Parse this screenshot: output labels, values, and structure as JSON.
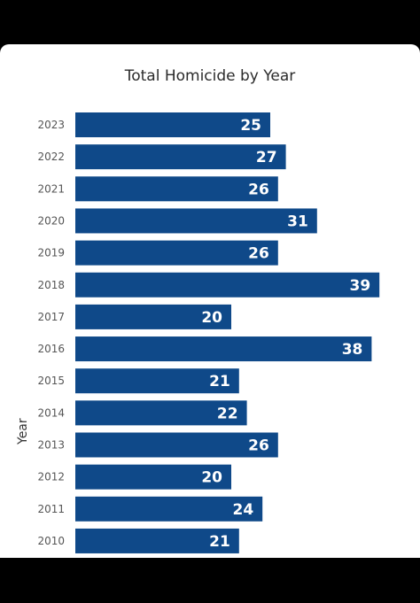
{
  "colors": {
    "bar": "#0f4989",
    "bar_label": "#ffffff",
    "tick_label": "#555555",
    "title": "#2b2b2b",
    "background": "#ffffff",
    "frame": "#000000"
  },
  "chart_data": {
    "type": "bar",
    "orientation": "horizontal",
    "title": "Total Homicide by Year",
    "xlabel": "",
    "ylabel": "Year",
    "categories": [
      "2023",
      "2022",
      "2021",
      "2020",
      "2019",
      "2018",
      "2017",
      "2016",
      "2015",
      "2014",
      "2013",
      "2012",
      "2011",
      "2010"
    ],
    "values": [
      25,
      27,
      26,
      31,
      26,
      39,
      20,
      38,
      21,
      22,
      26,
      20,
      24,
      21
    ],
    "data_labels": true,
    "grid": false,
    "legend": "none"
  }
}
